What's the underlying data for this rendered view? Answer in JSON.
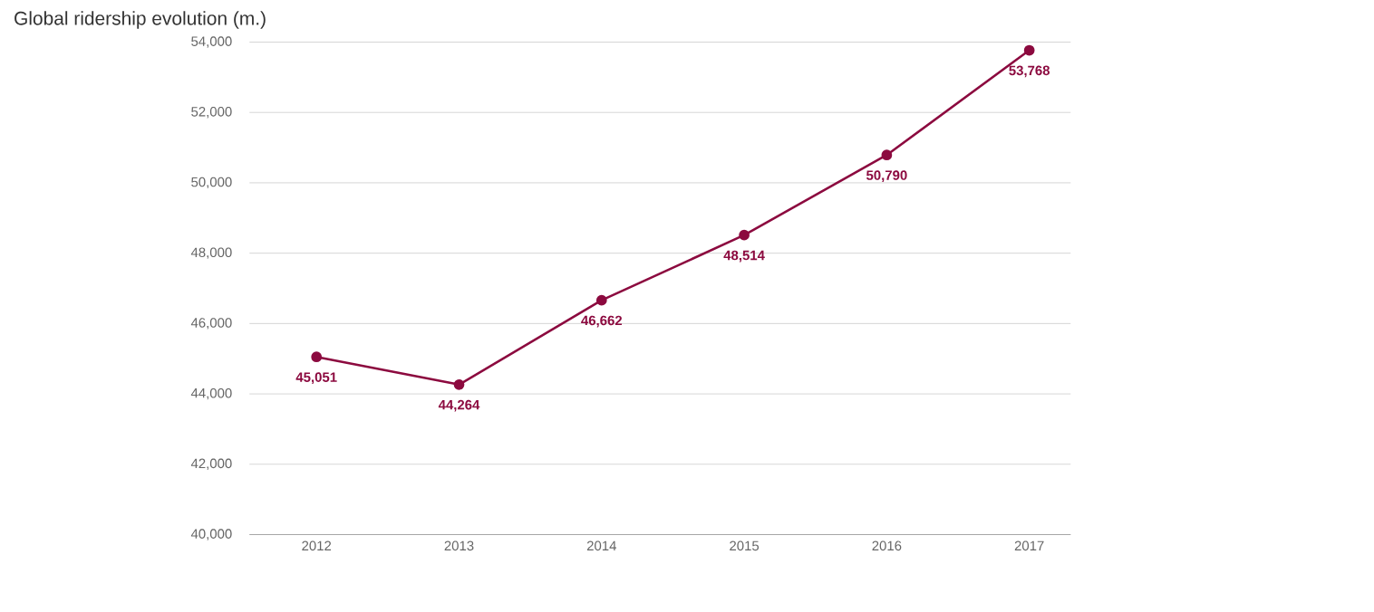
{
  "chart_data": {
    "type": "line",
    "title": "Global ridership evolution (m.)",
    "categories": [
      "2012",
      "2013",
      "2014",
      "2015",
      "2016",
      "2017"
    ],
    "values": [
      45051,
      44264,
      46662,
      48514,
      50790,
      53768
    ],
    "value_labels": [
      "45,051",
      "44,264",
      "46,662",
      "48,514",
      "50,790",
      "53,768"
    ],
    "color": "#8c0a3f",
    "marker": "circle",
    "line_style": "solid",
    "ylim": [
      40000,
      54000
    ],
    "yticks": [
      {
        "value": 40000,
        "label": "40,000"
      },
      {
        "value": 42000,
        "label": "42,000"
      },
      {
        "value": 44000,
        "label": "44,000"
      },
      {
        "value": 46000,
        "label": "46,000"
      },
      {
        "value": 48000,
        "label": "48,000"
      },
      {
        "value": 50000,
        "label": "50,000"
      },
      {
        "value": 52000,
        "label": "52,000"
      },
      {
        "value": 54000,
        "label": "54,000"
      }
    ],
    "grid": "y"
  }
}
